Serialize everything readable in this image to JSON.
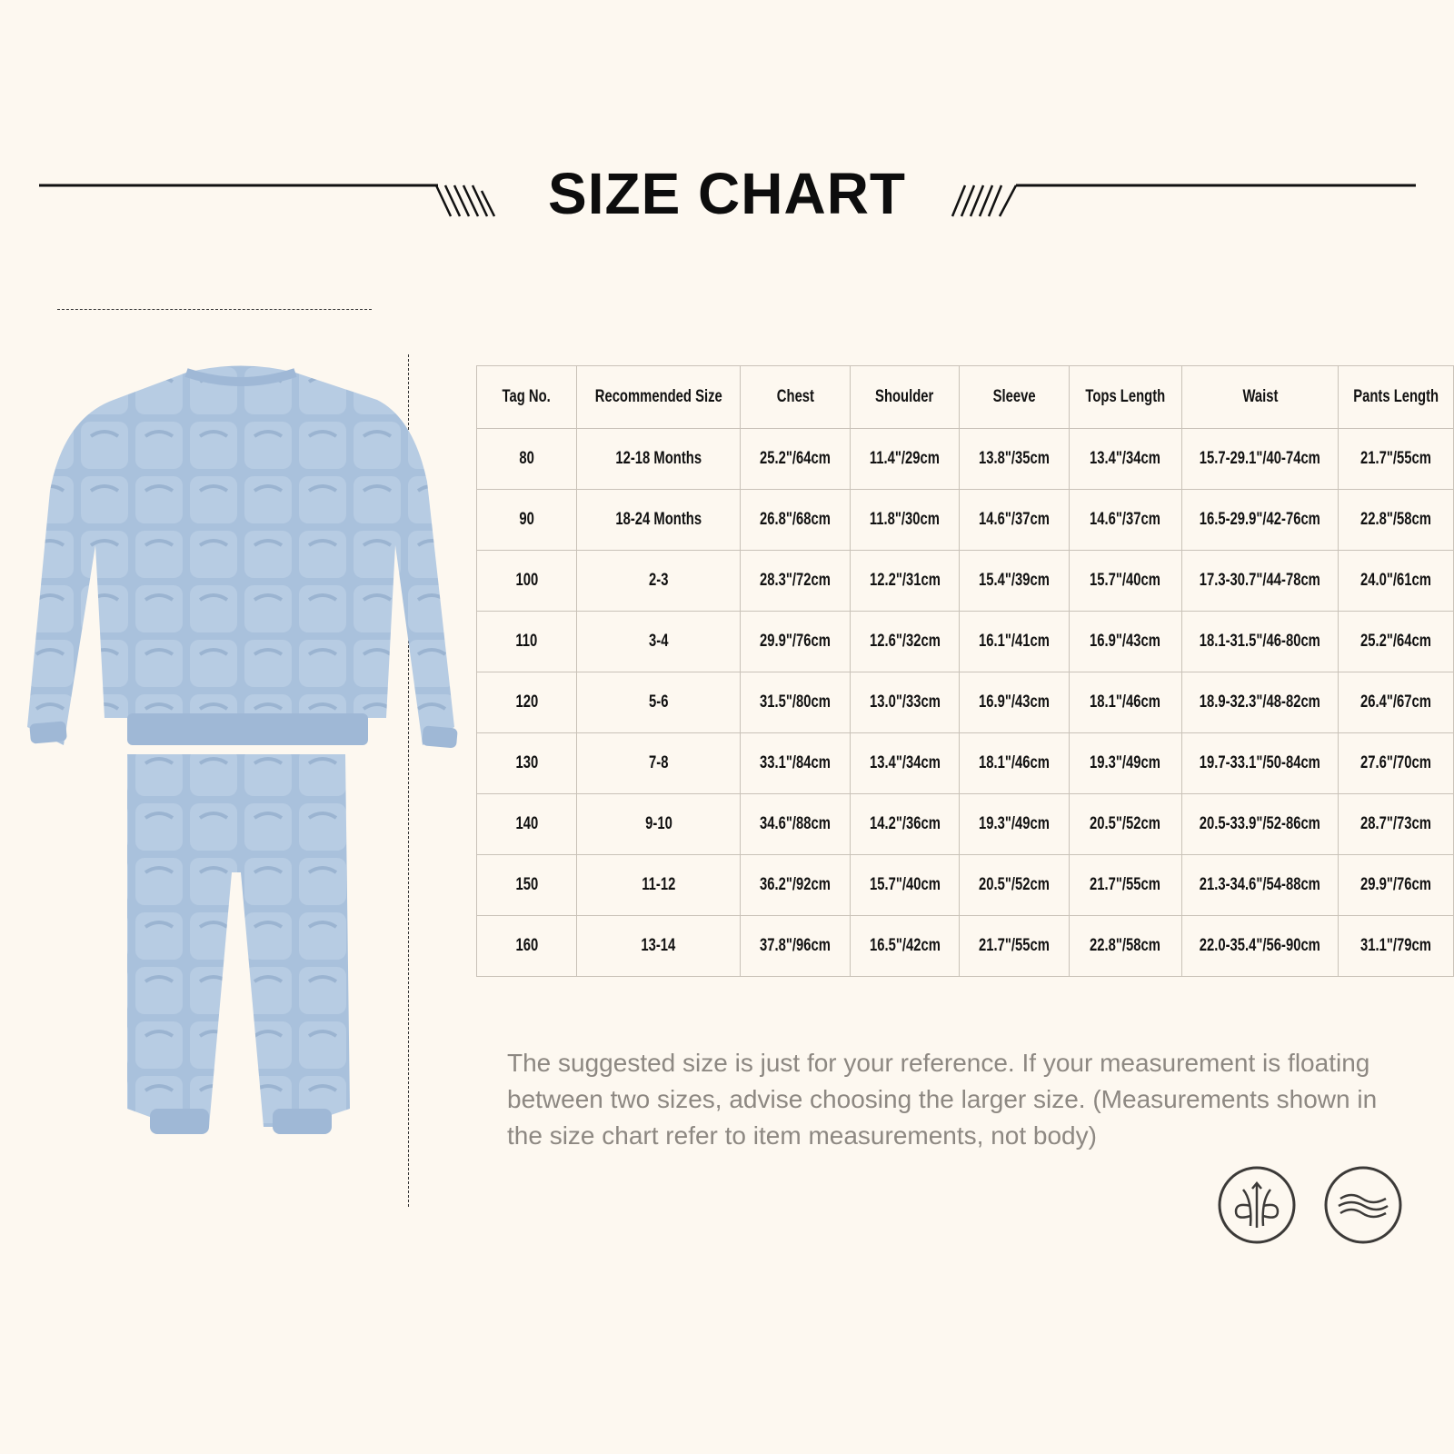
{
  "header": {
    "title": "SIZE CHART"
  },
  "product_image": {
    "description_icon": "blue-fleece-pajama-set",
    "color": "#a9c1dc"
  },
  "table": {
    "columns": [
      "Tag No.",
      "Recommended Size",
      "Chest",
      "Shoulder",
      "Sleeve",
      "Tops Length",
      "Waist",
      "Pants Length"
    ],
    "rows": [
      [
        "80",
        "12-18 Months",
        "25.2\"/64cm",
        "11.4\"/29cm",
        "13.8\"/35cm",
        "13.4\"/34cm",
        "15.7-29.1\"/40-74cm",
        "21.7\"/55cm"
      ],
      [
        "90",
        "18-24 Months",
        "26.8\"/68cm",
        "11.8\"/30cm",
        "14.6\"/37cm",
        "14.6\"/37cm",
        "16.5-29.9\"/42-76cm",
        "22.8\"/58cm"
      ],
      [
        "100",
        "2-3",
        "28.3\"/72cm",
        "12.2\"/31cm",
        "15.4\"/39cm",
        "15.7\"/40cm",
        "17.3-30.7\"/44-78cm",
        "24.0\"/61cm"
      ],
      [
        "110",
        "3-4",
        "29.9\"/76cm",
        "12.6\"/32cm",
        "16.1\"/41cm",
        "16.9\"/43cm",
        "18.1-31.5\"/46-80cm",
        "25.2\"/64cm"
      ],
      [
        "120",
        "5-6",
        "31.5\"/80cm",
        "13.0\"/33cm",
        "16.9\"/43cm",
        "18.1\"/46cm",
        "18.9-32.3\"/48-82cm",
        "26.4\"/67cm"
      ],
      [
        "130",
        "7-8",
        "33.1\"/84cm",
        "13.4\"/34cm",
        "18.1\"/46cm",
        "19.3\"/49cm",
        "19.7-33.1\"/50-84cm",
        "27.6\"/70cm"
      ],
      [
        "140",
        "9-10",
        "34.6\"/88cm",
        "14.2\"/36cm",
        "19.3\"/49cm",
        "20.5\"/52cm",
        "20.5-33.9\"/52-86cm",
        "28.7\"/73cm"
      ],
      [
        "150",
        "11-12",
        "36.2\"/92cm",
        "15.7\"/40cm",
        "20.5\"/52cm",
        "21.7\"/55cm",
        "21.3-34.6\"/54-88cm",
        "29.9\"/76cm"
      ],
      [
        "160",
        "13-14",
        "37.8\"/96cm",
        "16.5\"/42cm",
        "21.7\"/55cm",
        "22.8\"/58cm",
        "22.0-35.4\"/56-90cm",
        "31.1\"/79cm"
      ]
    ]
  },
  "note": "The suggested size is just for your reference. If your measurement is floating between two sizes, advise choosing the larger size. (Measurements shown in the size chart refer to item measurements, not body)",
  "icons": [
    "breathable-icon",
    "soft-wave-icon"
  ]
}
